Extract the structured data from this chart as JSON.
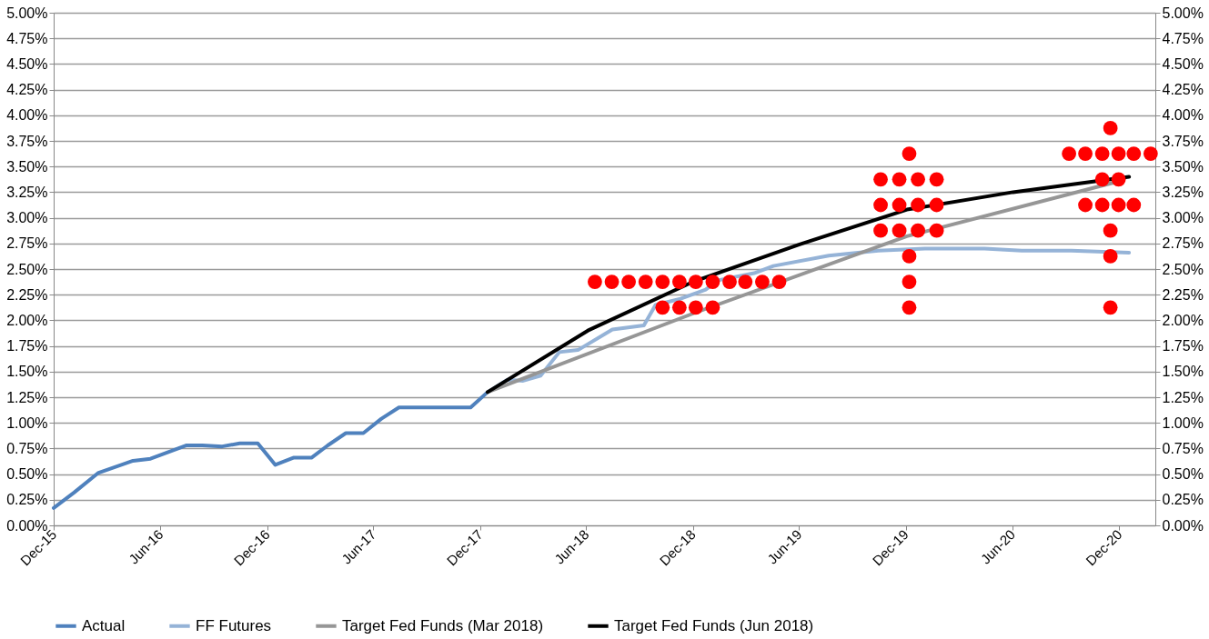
{
  "chart_data": {
    "type": "line",
    "xlim": [
      "2015-12-01",
      "2021-02-01"
    ],
    "xticks": [
      {
        "value": "2015-12-01",
        "label": "Dec-15"
      },
      {
        "value": "2016-06-01",
        "label": "Jun-16"
      },
      {
        "value": "2016-12-01",
        "label": "Dec-16"
      },
      {
        "value": "2017-06-01",
        "label": "Jun-17"
      },
      {
        "value": "2017-12-01",
        "label": "Dec-17"
      },
      {
        "value": "2018-06-01",
        "label": "Jun-18"
      },
      {
        "value": "2018-12-01",
        "label": "Dec-18"
      },
      {
        "value": "2019-06-01",
        "label": "Jun-19"
      },
      {
        "value": "2019-12-01",
        "label": "Dec-19"
      },
      {
        "value": "2020-06-01",
        "label": "Jun-20"
      },
      {
        "value": "2020-12-01",
        "label": "Dec-20"
      }
    ],
    "ylim": [
      0,
      5
    ],
    "yticks": [
      {
        "value": 0,
        "label": "0.00%"
      },
      {
        "value": 0.25,
        "label": "0.25%"
      },
      {
        "value": 0.5,
        "label": "0.50%"
      },
      {
        "value": 0.75,
        "label": "0.75%"
      },
      {
        "value": 1,
        "label": "1.00%"
      },
      {
        "value": 1.25,
        "label": "1.25%"
      },
      {
        "value": 1.5,
        "label": "1.50%"
      },
      {
        "value": 1.75,
        "label": "1.75%"
      },
      {
        "value": 2,
        "label": "2.00%"
      },
      {
        "value": 2.25,
        "label": "2.25%"
      },
      {
        "value": 2.5,
        "label": "2.50%"
      },
      {
        "value": 2.75,
        "label": "2.75%"
      },
      {
        "value": 3,
        "label": "3.00%"
      },
      {
        "value": 3.25,
        "label": "3.25%"
      },
      {
        "value": 3.5,
        "label": "3.50%"
      },
      {
        "value": 3.75,
        "label": "3.75%"
      },
      {
        "value": 4,
        "label": "4.00%"
      },
      {
        "value": 4.25,
        "label": "4.25%"
      },
      {
        "value": 4.5,
        "label": "4.50%"
      },
      {
        "value": 4.75,
        "label": "4.75%"
      },
      {
        "value": 5,
        "label": "5.00%"
      }
    ],
    "y2lim": [
      0,
      5
    ],
    "y2ticks": [
      {
        "value": 0,
        "label": "0.00%"
      },
      {
        "value": 0.25,
        "label": "0.25%"
      },
      {
        "value": 0.5,
        "label": "0.50%"
      },
      {
        "value": 0.75,
        "label": "0.75%"
      },
      {
        "value": 1,
        "label": "1.00%"
      },
      {
        "value": 1.25,
        "label": "1.25%"
      },
      {
        "value": 1.5,
        "label": "1.50%"
      },
      {
        "value": 1.75,
        "label": "1.75%"
      },
      {
        "value": 2,
        "label": "2.00%"
      },
      {
        "value": 2.25,
        "label": "2.25%"
      },
      {
        "value": 2.5,
        "label": "2.50%"
      },
      {
        "value": 2.75,
        "label": "2.75%"
      },
      {
        "value": 3,
        "label": "3.00%"
      },
      {
        "value": 3.25,
        "label": "3.25%"
      },
      {
        "value": 3.5,
        "label": "3.50%"
      },
      {
        "value": 3.75,
        "label": "3.75%"
      },
      {
        "value": 4,
        "label": "4.00%"
      },
      {
        "value": 4.25,
        "label": "4.25%"
      },
      {
        "value": 4.5,
        "label": "4.50%"
      },
      {
        "value": 4.75,
        "label": "4.75%"
      },
      {
        "value": 5,
        "label": "5.00%"
      }
    ],
    "grid": "y",
    "legend": "bottom",
    "marker": "none",
    "line_style": "solid",
    "series": [
      {
        "name": "Actual",
        "color": "#4f81bd",
        "x": [
          "2015-12-01",
          "2016-01-05",
          "2016-02-15",
          "2016-04-15",
          "2016-05-15",
          "2016-07-15",
          "2016-08-12",
          "2016-09-15",
          "2016-10-15",
          "2016-11-15",
          "2016-12-15",
          "2017-01-15",
          "2017-02-15",
          "2017-03-15",
          "2017-04-15",
          "2017-05-15",
          "2017-06-15",
          "2017-07-15",
          "2017-08-18",
          "2017-11-15",
          "2017-12-14"
        ],
        "values": [
          0.17,
          0.32,
          0.51,
          0.63,
          0.65,
          0.78,
          0.78,
          0.77,
          0.8,
          0.8,
          0.59,
          0.66,
          0.66,
          0.78,
          0.9,
          0.9,
          1.04,
          1.15,
          1.15,
          1.15,
          1.3
        ]
      },
      {
        "name": "FF Futures",
        "color": "#95b3d7",
        "x": [
          "2017-12-14",
          "2018-01-17",
          "2018-02-13",
          "2018-03-15",
          "2018-04-16",
          "2018-05-18",
          "2018-07-16",
          "2018-09-08",
          "2018-09-28",
          "2018-11-10",
          "2018-12-23",
          "2019-01-13",
          "2019-03-16",
          "2019-04-18",
          "2019-07-22",
          "2019-10-15",
          "2020-01-03",
          "2020-04-14",
          "2020-06-17",
          "2020-09-10",
          "2020-12-18"
        ],
        "values": [
          1.3,
          1.42,
          1.41,
          1.46,
          1.69,
          1.71,
          1.91,
          1.95,
          2.15,
          2.21,
          2.3,
          2.39,
          2.46,
          2.53,
          2.63,
          2.68,
          2.7,
          2.7,
          2.68,
          2.68,
          2.66
        ]
      },
      {
        "name": "Target Fed Funds (Mar 2018)",
        "color": "#969696",
        "x": [
          "2017-12-14",
          "2018-12-03",
          "2019-12-03",
          "2020-12-03"
        ],
        "values": [
          1.3,
          2.07,
          2.82,
          3.36
        ]
      },
      {
        "name": "Target Fed Funds (Jun 2018)",
        "color": "#000000",
        "x": [
          "2017-12-14",
          "2018-06-04",
          "2018-12-03",
          "2019-06-02",
          "2019-12-03",
          "2020-06-02",
          "2020-12-18"
        ],
        "values": [
          1.3,
          1.9,
          2.38,
          2.74,
          3.08,
          3.25,
          3.4
        ]
      },
      {
        "type": "scatter",
        "marker": "circle",
        "color": "#ff0000",
        "x": [
          "2018-06-16",
          "2018-07-15",
          "2018-08-13",
          "2018-09-11",
          "2018-10-10",
          "2018-11-08",
          "2018-12-06",
          "2019-01-04",
          "2019-02-02",
          "2019-03-01",
          "2019-03-30",
          "2019-04-28",
          "2018-10-10",
          "2018-11-08",
          "2018-12-06",
          "2019-01-04",
          "2019-12-07",
          "2019-10-19",
          "2019-11-20",
          "2019-12-22",
          "2020-01-23",
          "2019-10-19",
          "2019-11-20",
          "2019-12-22",
          "2020-01-23",
          "2019-10-19",
          "2019-11-20",
          "2019-12-22",
          "2020-01-23",
          "2019-12-07",
          "2019-12-07",
          "2019-12-07",
          "2020-11-16",
          "2020-09-06",
          "2020-10-04",
          "2020-11-02",
          "2020-11-30",
          "2020-12-26",
          "2021-01-24",
          "2020-11-02",
          "2020-11-30",
          "2020-10-04",
          "2020-11-02",
          "2020-11-30",
          "2020-12-26",
          "2020-11-16",
          "2020-11-16",
          "2020-11-16"
        ],
        "values": [
          2.375,
          2.375,
          2.375,
          2.375,
          2.375,
          2.375,
          2.375,
          2.375,
          2.375,
          2.375,
          2.375,
          2.375,
          2.125,
          2.125,
          2.125,
          2.125,
          3.625,
          3.375,
          3.375,
          3.375,
          3.375,
          3.125,
          3.125,
          3.125,
          3.125,
          2.875,
          2.875,
          2.875,
          2.875,
          2.625,
          2.375,
          2.125,
          3.875,
          3.625,
          3.625,
          3.625,
          3.625,
          3.625,
          3.625,
          3.375,
          3.375,
          3.125,
          3.125,
          3.125,
          3.125,
          2.875,
          2.625,
          2.125
        ]
      }
    ]
  }
}
